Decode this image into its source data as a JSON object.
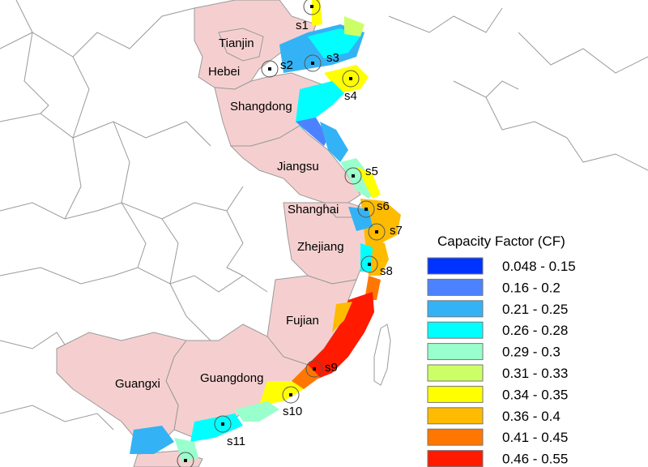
{
  "map": {
    "provinces": [
      {
        "id": "tianjin",
        "name": "Tianjin"
      },
      {
        "id": "hebei",
        "name": "Hebei"
      },
      {
        "id": "shangdong",
        "name": "Shangdong"
      },
      {
        "id": "jiangsu",
        "name": "Jiangsu"
      },
      {
        "id": "shanghai",
        "name": "Shanghai"
      },
      {
        "id": "zhejiang",
        "name": "Zhejiang"
      },
      {
        "id": "fujian",
        "name": "Fujian"
      },
      {
        "id": "guangxi",
        "name": "Guangxi"
      },
      {
        "id": "guangdong",
        "name": "Guangdong"
      }
    ],
    "sites": [
      "s1",
      "s2",
      "s3",
      "s4",
      "s5",
      "s6",
      "s7",
      "s8",
      "s9",
      "s10",
      "s11"
    ]
  },
  "legend": {
    "title": "Capacity Factor (CF)",
    "items": [
      {
        "label": "0.048 - 0.15",
        "color": "#0033ff"
      },
      {
        "label": "0.16 - 0.2",
        "color": "#4d82ff"
      },
      {
        "label": "0.21 - 0.25",
        "color": "#33b3f5"
      },
      {
        "label": "0.26 - 0.28",
        "color": "#00ffff"
      },
      {
        "label": "0.29 - 0.3",
        "color": "#99ffcc"
      },
      {
        "label": "0.31 - 0.33",
        "color": "#ccff66"
      },
      {
        "label": "0.34 - 0.35",
        "color": "#ffff00"
      },
      {
        "label": "0.36 - 0.4",
        "color": "#ffbb00"
      },
      {
        "label": "0.41 - 0.45",
        "color": "#ff7700"
      },
      {
        "label": "0.46 - 0.55",
        "color": "#ff1a00"
      }
    ]
  },
  "colors": {
    "coastal_province_fill": "#f5cfcf",
    "inland_fill": "#ffffff",
    "border_color": "#9a9a9a"
  }
}
